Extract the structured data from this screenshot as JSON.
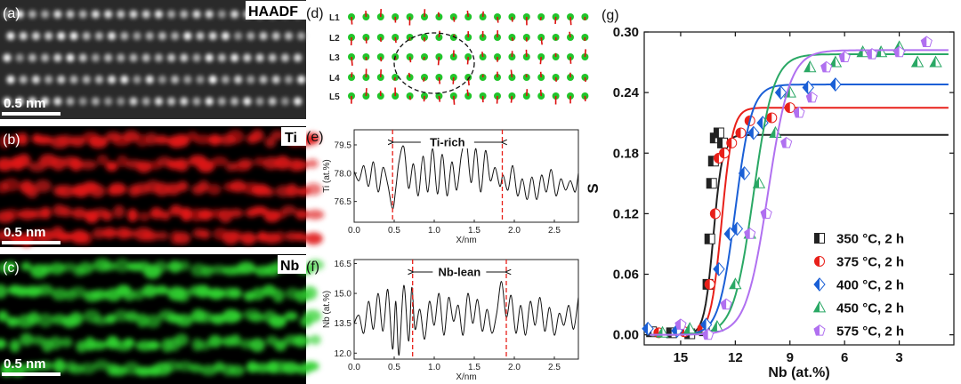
{
  "panels": {
    "a": {
      "letter": "(a)",
      "label": "HAADF",
      "scale": "0.5 nm"
    },
    "b": {
      "letter": "(b)",
      "label": "Ti",
      "scale": "0.5 nm"
    },
    "c": {
      "letter": "(c)",
      "label": "Nb",
      "scale": "0.5 nm"
    },
    "d": {
      "letter": "(d)",
      "rows": [
        "L1",
        "L2",
        "L3",
        "L4",
        "L5"
      ]
    },
    "e": {
      "letter": "(e)"
    },
    "f": {
      "letter": "(f)"
    },
    "g": {
      "letter": "(g)"
    }
  },
  "colors": {
    "ti_red": "#e01818",
    "nb_green": "#2fd02f",
    "atom_green": "#22c42a",
    "arrow_red": "#dd1111",
    "dash_red": "#e8201a"
  },
  "chart_data": [
    {
      "id": "e",
      "type": "line",
      "title": "",
      "xlabel": "X/nm",
      "ylabel": "Ti (at.%)",
      "xlim": [
        0,
        2.8
      ],
      "ylim": [
        75.4,
        80.3
      ],
      "xticks": [
        "0.0",
        "0.5",
        "1.0",
        "1.5",
        "2.0",
        "2.5"
      ],
      "yticks": [
        "76.5",
        "78.0",
        "79.5"
      ],
      "annotation": {
        "text": "Ti-rich",
        "x_start": 0.48,
        "x_end": 1.85
      },
      "x": [
        0.0,
        0.06,
        0.12,
        0.18,
        0.24,
        0.3,
        0.36,
        0.42,
        0.48,
        0.52,
        0.56,
        0.62,
        0.68,
        0.74,
        0.8,
        0.86,
        0.92,
        0.98,
        1.04,
        1.1,
        1.16,
        1.22,
        1.28,
        1.34,
        1.4,
        1.46,
        1.52,
        1.58,
        1.64,
        1.7,
        1.76,
        1.82,
        1.86,
        1.92,
        1.98,
        2.04,
        2.1,
        2.16,
        2.22,
        2.28,
        2.34,
        2.4,
        2.46,
        2.52,
        2.58,
        2.64,
        2.7,
        2.76,
        2.8
      ],
      "y": [
        78.1,
        77.6,
        78.4,
        77.3,
        78.6,
        77.0,
        78.3,
        77.4,
        76.1,
        77.2,
        78.6,
        79.4,
        77.2,
        78.5,
        76.8,
        78.9,
        77.0,
        79.3,
        76.9,
        79.0,
        76.8,
        78.6,
        77.1,
        79.0,
        79.7,
        77.5,
        79.3,
        77.0,
        79.2,
        77.6,
        78.3,
        77.3,
        77.9,
        77.1,
        78.4,
        76.8,
        77.7,
        76.6,
        77.8,
        76.6,
        77.9,
        77.0,
        78.2,
        76.8,
        77.7,
        77.1,
        77.6,
        77.0,
        78.0
      ]
    },
    {
      "id": "f",
      "type": "line",
      "title": "",
      "xlabel": "X/nm",
      "ylabel": "Nb (at.%)",
      "xlim": [
        0,
        2.8
      ],
      "ylim": [
        11.7,
        16.7
      ],
      "xticks": [
        "0.0",
        "0.5",
        "1.0",
        "1.5",
        "2.0",
        "2.5"
      ],
      "yticks": [
        "12.0",
        "13.5",
        "15.0",
        "16.5"
      ],
      "annotation": {
        "text": "Nb-lean",
        "x_start": 0.73,
        "x_end": 1.9
      },
      "x": [
        0.0,
        0.06,
        0.12,
        0.18,
        0.24,
        0.3,
        0.36,
        0.42,
        0.48,
        0.52,
        0.56,
        0.62,
        0.68,
        0.72,
        0.76,
        0.82,
        0.88,
        0.94,
        1.0,
        1.06,
        1.12,
        1.18,
        1.24,
        1.3,
        1.36,
        1.42,
        1.48,
        1.54,
        1.6,
        1.66,
        1.72,
        1.78,
        1.84,
        1.9,
        1.96,
        2.02,
        2.08,
        2.14,
        2.2,
        2.26,
        2.32,
        2.38,
        2.44,
        2.5,
        2.56,
        2.62,
        2.68,
        2.74,
        2.8
      ],
      "y": [
        13.5,
        13.9,
        13.0,
        14.6,
        13.2,
        15.0,
        13.1,
        15.2,
        12.2,
        14.6,
        11.9,
        15.4,
        12.6,
        15.3,
        13.2,
        14.2,
        12.7,
        14.6,
        13.4,
        15.0,
        12.9,
        14.8,
        13.6,
        14.4,
        12.9,
        15.0,
        13.5,
        14.7,
        13.1,
        14.2,
        13.0,
        14.0,
        15.6,
        13.8,
        14.9,
        13.0,
        14.4,
        12.9,
        14.6,
        13.4,
        14.8,
        13.1,
        14.3,
        12.9,
        14.0,
        13.4,
        14.4,
        13.2,
        14.8
      ]
    },
    {
      "id": "g",
      "type": "scatter",
      "title": "",
      "xlabel": "Nb (at.%)",
      "ylabel": "S",
      "xlim": [
        17,
        0
      ],
      "ylim": [
        -0.01,
        0.3
      ],
      "xticks": [
        "15",
        "12",
        "9",
        "6",
        "3"
      ],
      "yticks": [
        "0.00",
        "0.06",
        "0.12",
        "0.18",
        "0.24",
        "0.30"
      ],
      "legend_position": "bottom-right",
      "series": [
        {
          "name": "350 °C,  2 h",
          "marker": "square",
          "color": "#222222",
          "x": [
            16.6,
            15.5,
            14.5,
            13.7,
            13.5,
            13.4,
            13.3,
            13.2,
            13.1,
            12.9,
            12.7
          ],
          "y": [
            0.003,
            0.002,
            0.001,
            0.004,
            0.05,
            0.095,
            0.15,
            0.172,
            0.195,
            0.2,
            0.19
          ],
          "fit": {
            "center": 13.2,
            "width": 0.25,
            "smax": 0.198
          }
        },
        {
          "name": "375 °C,  2 h",
          "marker": "circle",
          "color": "#e8201a",
          "x": [
            16.2,
            14.8,
            13.8,
            13.4,
            13.1,
            12.9,
            12.6,
            12.2,
            11.7,
            11.2,
            10.0,
            9.0
          ],
          "y": [
            0.002,
            0.003,
            0.006,
            0.05,
            0.12,
            0.175,
            0.18,
            0.19,
            0.2,
            0.212,
            0.215,
            0.225
          ],
          "fit": {
            "center": 12.75,
            "width": 0.3,
            "smax": 0.225
          }
        },
        {
          "name": "400 °C,  2 h",
          "marker": "diamond",
          "color": "#1a5fd6",
          "x": [
            16.8,
            15.2,
            13.6,
            12.9,
            12.3,
            11.9,
            11.5,
            11.0,
            10.5,
            9.5,
            8.0,
            6.5
          ],
          "y": [
            0.006,
            0.004,
            0.01,
            0.065,
            0.1,
            0.105,
            0.16,
            0.2,
            0.21,
            0.24,
            0.245,
            0.248
          ],
          "fit": {
            "center": 12.0,
            "width": 0.45,
            "smax": 0.248
          }
        },
        {
          "name": "450 °C,  2 h",
          "marker": "triangle",
          "color": "#2aa865",
          "x": [
            16.0,
            14.5,
            13.0,
            12.0,
            11.2,
            10.7,
            9.8,
            9.0,
            7.9,
            6.5,
            5.0,
            4.0,
            3.0,
            2.0,
            1.0
          ],
          "y": [
            0.002,
            0.006,
            0.008,
            0.05,
            0.1,
            0.15,
            0.2,
            0.24,
            0.265,
            0.27,
            0.28,
            0.28,
            0.285,
            0.27,
            0.27
          ],
          "fit": {
            "center": 11.0,
            "width": 0.55,
            "smax": 0.278
          }
        },
        {
          "name": "575 °C,  2 h",
          "marker": "pentagon",
          "color": "#b070f0",
          "x": [
            15.0,
            13.5,
            12.5,
            11.2,
            10.3,
            9.2,
            8.5,
            7.8,
            7.0,
            6.0,
            4.5,
            3.0,
            1.5
          ],
          "y": [
            0.01,
            0.0,
            0.03,
            0.1,
            0.12,
            0.19,
            0.22,
            0.235,
            0.265,
            0.275,
            0.278,
            0.28,
            0.29
          ],
          "fit": {
            "center": 10.2,
            "width": 0.6,
            "smax": 0.282
          }
        }
      ]
    }
  ]
}
